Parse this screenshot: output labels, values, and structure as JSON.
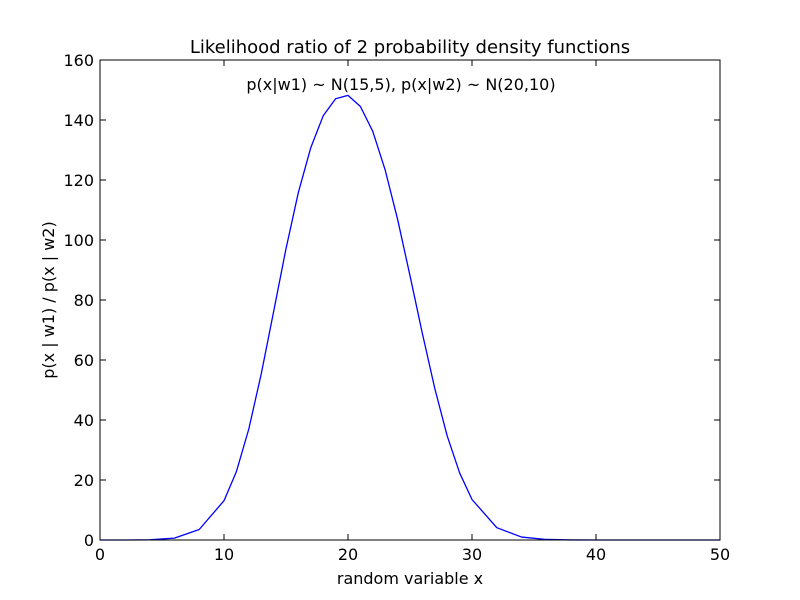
{
  "chart_data": {
    "type": "line",
    "title": "Likelihood ratio of 2 probability density functions",
    "annotation": "p(x|w1) ~ N(15,5), p(x|w2) ~ N(20,10)",
    "xlabel": "random variable x",
    "ylabel": "p(x | w1) / p(x | w2)",
    "xlim": [
      0,
      50
    ],
    "ylim": [
      0,
      160
    ],
    "xticks": [
      0,
      10,
      20,
      30,
      40,
      50
    ],
    "yticks": [
      0,
      20,
      40,
      60,
      80,
      100,
      120,
      140,
      160
    ],
    "grid": false,
    "series": [
      {
        "color": "#0000ff",
        "x": [
          0,
          2,
          4,
          6,
          8,
          10,
          11,
          12,
          13,
          14,
          15,
          16,
          17,
          18,
          19,
          20,
          21,
          22,
          23,
          24,
          25,
          26,
          27,
          28,
          29,
          30,
          32,
          34,
          36,
          38,
          40,
          42,
          44,
          46,
          48,
          50
        ],
        "y": [
          0.0002,
          0.005,
          0.07,
          0.62,
          3.5,
          13.1,
          22.8,
          37.0,
          55.3,
          76.1,
          97.1,
          115.9,
          130.8,
          141.4,
          147.1,
          148.2,
          144.5,
          136.2,
          123.3,
          106.9,
          88.1,
          68.8,
          50.5,
          34.7,
          22.4,
          13.5,
          4.1,
          0.98,
          0.18,
          0.025,
          0.0027,
          0.0002,
          1e-05,
          0,
          0,
          0
        ]
      }
    ]
  }
}
